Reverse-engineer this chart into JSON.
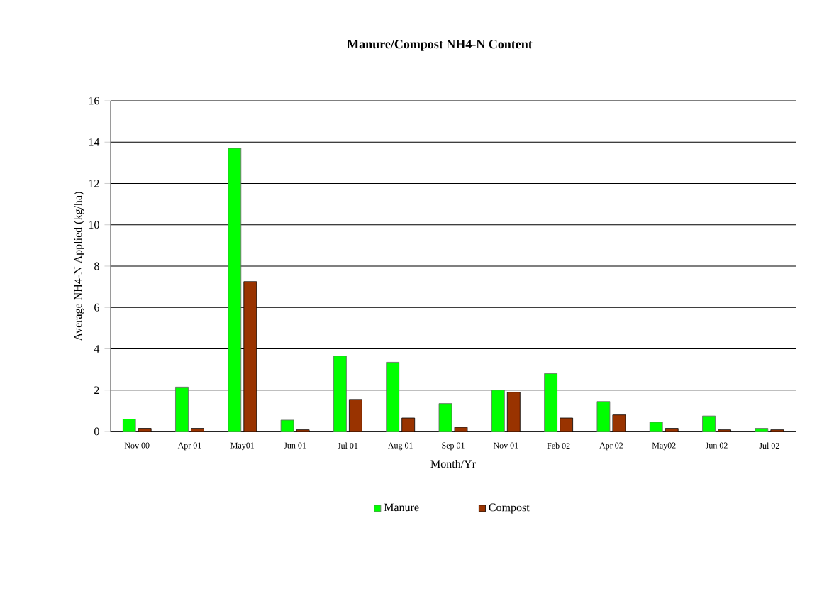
{
  "chart_data": {
    "type": "bar",
    "title": "Manure/Compost NH4-N Content",
    "xlabel": "Month/Yr",
    "ylabel": "Average NH4-N Applied (kg/ha)",
    "categories": [
      "Nov 00",
      "Apr 01",
      "May01",
      "Jun 01",
      "Jul 01",
      "Aug 01",
      "Sep 01",
      "Nov 01",
      "Feb 02",
      "Apr 02",
      "May02",
      "Jun 02",
      "Jul 02"
    ],
    "series": [
      {
        "name": "Manure",
        "color": "#00ff00",
        "values": [
          0.6,
          2.15,
          13.7,
          0.55,
          3.65,
          3.35,
          1.35,
          2.0,
          2.8,
          1.45,
          0.45,
          0.75,
          0.15
        ]
      },
      {
        "name": "Compost",
        "color": "#993300",
        "values": [
          0.15,
          0.15,
          7.25,
          0.08,
          1.55,
          0.65,
          0.2,
          1.9,
          0.65,
          0.8,
          0.15,
          0.08,
          0.08
        ]
      }
    ],
    "ylim": [
      0,
      16
    ],
    "yticks": [
      0,
      2,
      4,
      6,
      8,
      10,
      12,
      14,
      16
    ],
    "grid": "y",
    "legend": "bottom"
  }
}
